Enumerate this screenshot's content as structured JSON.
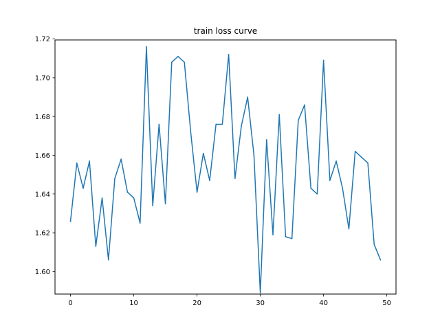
{
  "chart_data": {
    "type": "line",
    "title": "train loss curve",
    "xlabel": "",
    "ylabel": "",
    "xlim": [
      -2.45,
      51.45
    ],
    "ylim": [
      1.5884,
      1.7195
    ],
    "x_ticks": [
      0,
      10,
      20,
      30,
      40,
      50
    ],
    "y_ticks": [
      1.6,
      1.62,
      1.64,
      1.66,
      1.68,
      1.7,
      1.72
    ],
    "x_tick_labels": [
      "0",
      "10",
      "20",
      "30",
      "40",
      "50"
    ],
    "y_tick_labels": [
      "1.60",
      "1.62",
      "1.64",
      "1.66",
      "1.68",
      "1.70",
      "1.72"
    ],
    "grid": false,
    "legend": "none",
    "series": [
      {
        "color": "#1f77b4",
        "x": [
          0,
          1,
          2,
          3,
          4,
          5,
          6,
          7,
          8,
          9,
          10,
          11,
          12,
          13,
          14,
          15,
          16,
          17,
          18,
          19,
          20,
          21,
          22,
          23,
          24,
          25,
          26,
          27,
          28,
          29,
          30,
          31,
          32,
          33,
          34,
          35,
          36,
          37,
          38,
          39,
          40,
          41,
          42,
          43,
          44,
          45,
          46,
          47,
          48,
          49
        ],
        "values": [
          1.626,
          1.656,
          1.643,
          1.657,
          1.613,
          1.638,
          1.606,
          1.648,
          1.658,
          1.641,
          1.638,
          1.625,
          1.716,
          1.634,
          1.676,
          1.635,
          1.708,
          1.711,
          1.708,
          1.672,
          1.641,
          1.661,
          1.647,
          1.676,
          1.676,
          1.712,
          1.648,
          1.675,
          1.69,
          1.66,
          1.589,
          1.668,
          1.619,
          1.681,
          1.618,
          1.617,
          1.678,
          1.686,
          1.643,
          1.64,
          1.709,
          1.647,
          1.657,
          1.643,
          1.622,
          1.662,
          1.659,
          1.656,
          1.614,
          1.606
        ]
      }
    ]
  }
}
